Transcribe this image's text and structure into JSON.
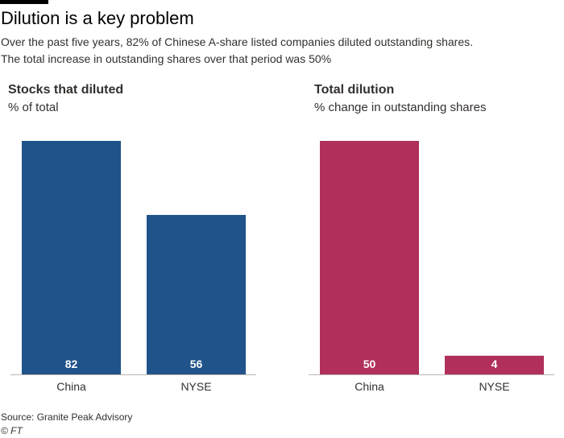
{
  "title": "Dilution is a key problem",
  "subtitle_lines": [
    "Over the past five years, 82% of Chinese A-share listed companies diluted outstanding shares.",
    "The total increase in outstanding shares over that period was 50%"
  ],
  "source": "Source: Granite Peak Advisory",
  "credit": "© FT",
  "colors": {
    "left": "#1f538a",
    "right": "#b0305b",
    "axis": "#bbb6b0",
    "value_label": "#ffffff"
  },
  "chart_data": [
    {
      "type": "bar",
      "title": "Stocks that diluted",
      "ylabel": "% of total",
      "categories": [
        "China",
        "NYSE"
      ],
      "values": [
        82,
        56
      ],
      "ylim": [
        0,
        82
      ],
      "grid": false
    },
    {
      "type": "bar",
      "title": "Total dilution",
      "ylabel": "% change in outstanding shares",
      "categories": [
        "China",
        "NYSE"
      ],
      "values": [
        50,
        4
      ],
      "ylim": [
        0,
        50
      ],
      "grid": false
    }
  ]
}
